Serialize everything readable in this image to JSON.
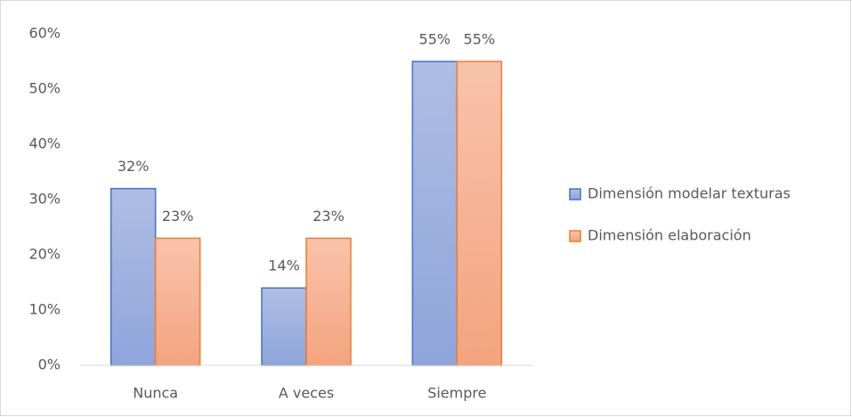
{
  "chart_data": {
    "type": "bar",
    "categories": [
      "Nunca",
      "A veces",
      "Siempre"
    ],
    "series": [
      {
        "name": "Dimensión modelar texturas",
        "color": "#4472c4",
        "values": [
          32,
          14,
          55
        ],
        "value_labels": [
          "32%",
          "14%",
          "55%"
        ]
      },
      {
        "name": "Dimensión elaboración",
        "color": "#ed7d31",
        "values": [
          23,
          23,
          55
        ],
        "value_labels": [
          "23%",
          "23%",
          "55%"
        ]
      }
    ],
    "ylim": [
      0,
      60
    ],
    "yticks": [
      {
        "value": 0,
        "label": "0%"
      },
      {
        "value": 10,
        "label": "10%"
      },
      {
        "value": 20,
        "label": "20%"
      },
      {
        "value": 30,
        "label": "30%"
      },
      {
        "value": 40,
        "label": "40%"
      },
      {
        "value": 50,
        "label": "50%"
      },
      {
        "value": 60,
        "label": "60%"
      }
    ],
    "grid": false,
    "legend": "right"
  }
}
